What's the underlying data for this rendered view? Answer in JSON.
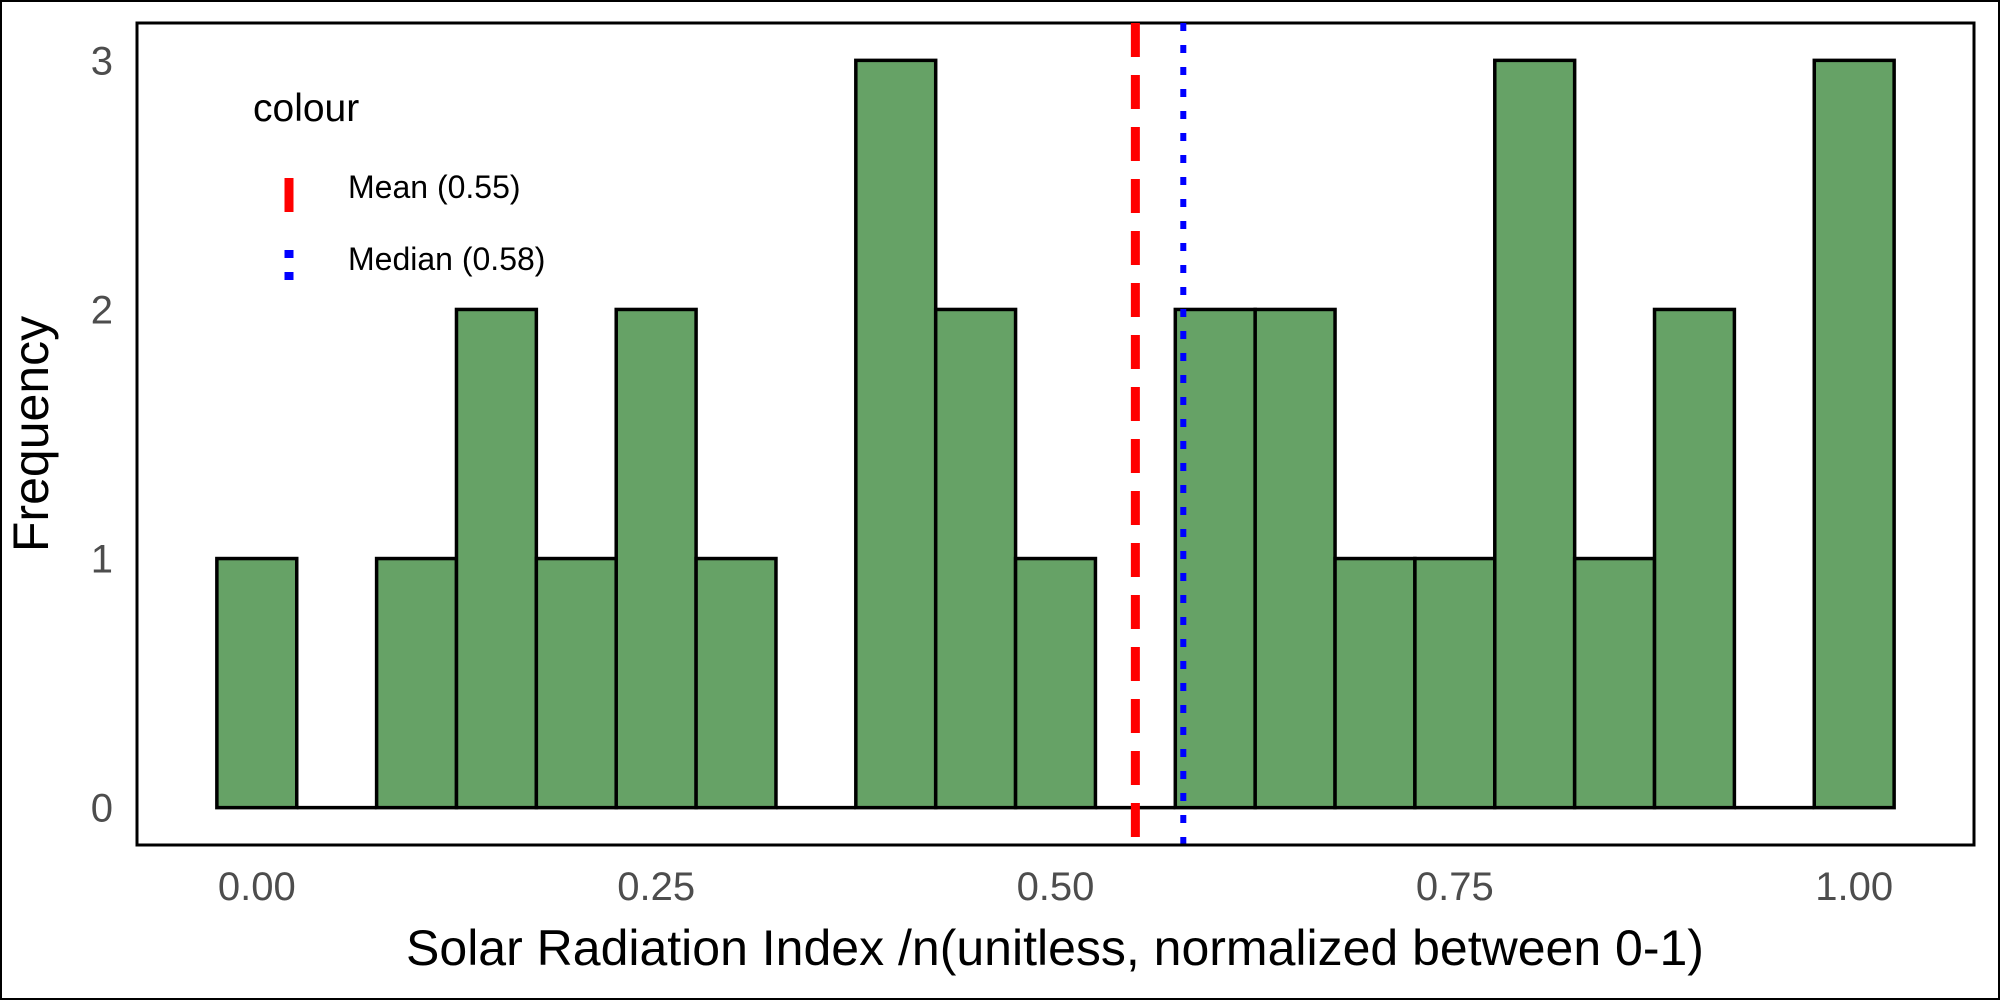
{
  "chart_data": {
    "type": "bar",
    "subtype": "histogram",
    "xlabel": "Solar Radiation Index /n(unitless, normalized between 0-1)",
    "ylabel": "Frequency",
    "xlim": [
      -0.075,
      1.075
    ],
    "ylim": [
      -0.15,
      3.15
    ],
    "x_ticks": [
      {
        "value": 0.0,
        "label": "0.00"
      },
      {
        "value": 0.25,
        "label": "0.25"
      },
      {
        "value": 0.5,
        "label": "0.50"
      },
      {
        "value": 0.75,
        "label": "0.75"
      },
      {
        "value": 1.0,
        "label": "1.00"
      }
    ],
    "y_ticks": [
      {
        "value": 0,
        "label": "0"
      },
      {
        "value": 1,
        "label": "1"
      },
      {
        "value": 2,
        "label": "2"
      },
      {
        "value": 3,
        "label": "3"
      }
    ],
    "bin_width": 0.05,
    "bins": [
      {
        "center": 0.0,
        "count": 1
      },
      {
        "center": 0.05,
        "count": 0
      },
      {
        "center": 0.1,
        "count": 1
      },
      {
        "center": 0.15,
        "count": 2
      },
      {
        "center": 0.2,
        "count": 1
      },
      {
        "center": 0.25,
        "count": 2
      },
      {
        "center": 0.3,
        "count": 1
      },
      {
        "center": 0.35,
        "count": 0
      },
      {
        "center": 0.4,
        "count": 3
      },
      {
        "center": 0.45,
        "count": 2
      },
      {
        "center": 0.5,
        "count": 1
      },
      {
        "center": 0.55,
        "count": 0
      },
      {
        "center": 0.6,
        "count": 2
      },
      {
        "center": 0.65,
        "count": 2
      },
      {
        "center": 0.7,
        "count": 1
      },
      {
        "center": 0.75,
        "count": 1
      },
      {
        "center": 0.8,
        "count": 3
      },
      {
        "center": 0.85,
        "count": 1
      },
      {
        "center": 0.9,
        "count": 2
      },
      {
        "center": 0.95,
        "count": 0
      },
      {
        "center": 1.0,
        "count": 3
      }
    ],
    "bar_fill": "#66a266",
    "bar_outline": "#000000",
    "reference_lines": [
      {
        "label": "Mean (0.55)",
        "value": 0.55,
        "color": "#ff0000",
        "style": "dashed"
      },
      {
        "label": "Median (0.58)",
        "value": 0.58,
        "color": "#0000ff",
        "style": "dotted"
      }
    ],
    "legend": {
      "title": "colour",
      "position": "top-left-inside"
    },
    "grid": false
  }
}
